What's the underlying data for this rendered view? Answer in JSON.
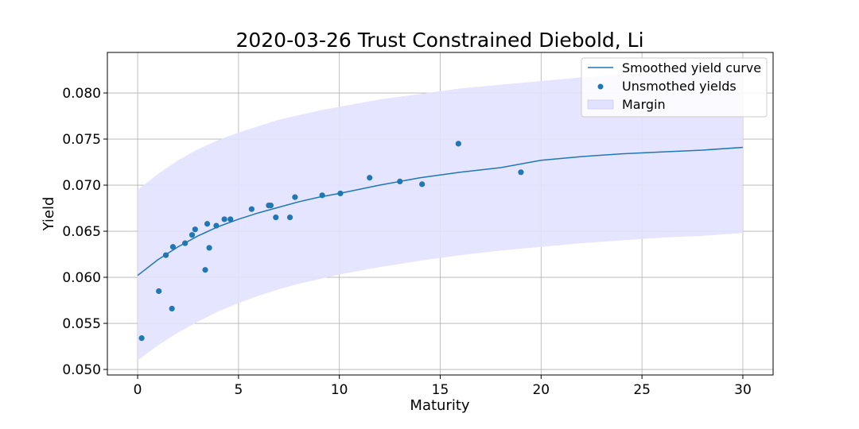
{
  "chart_data": {
    "type": "line",
    "title": "2020-03-26 Trust Constrained Diebold, Li",
    "xlabel": "Maturity",
    "ylabel": "Yield",
    "xlim": [
      -1.5,
      31.5
    ],
    "ylim": [
      0.0494,
      0.0844
    ],
    "xticks": [
      0,
      5,
      10,
      15,
      20,
      25,
      30
    ],
    "xtick_labels": [
      "0",
      "5",
      "10",
      "15",
      "20",
      "25",
      "30"
    ],
    "yticks": [
      0.05,
      0.055,
      0.06,
      0.065,
      0.07,
      0.075,
      0.08
    ],
    "ytick_labels": [
      "0.050",
      "0.055",
      "0.060",
      "0.065",
      "0.070",
      "0.075",
      "0.080"
    ],
    "grid": true,
    "legend_position": "top-right",
    "colors": {
      "curve": "#1f77b4",
      "points": "#1f77b4",
      "margin_fill": "#e2e2ff"
    },
    "series": [
      {
        "name": "Smoothed yield curve",
        "kind": "line",
        "x": [
          0,
          1,
          2,
          3,
          4,
          5,
          6,
          7,
          8,
          9,
          10,
          12,
          14,
          16,
          18,
          20,
          22,
          24,
          26,
          28,
          30
        ],
        "y": [
          0.0602,
          0.0619,
          0.0633,
          0.0645,
          0.0655,
          0.0663,
          0.067,
          0.0676,
          0.0682,
          0.0687,
          0.0691,
          0.07,
          0.0708,
          0.0714,
          0.0719,
          0.0727,
          0.0731,
          0.0734,
          0.0736,
          0.0738,
          0.0741
        ]
      },
      {
        "name": "Unsmothed yields",
        "kind": "scatter",
        "x": [
          0.2,
          1.05,
          1.4,
          1.7,
          1.75,
          2.35,
          2.7,
          2.85,
          3.35,
          3.45,
          3.55,
          3.9,
          4.3,
          4.6,
          5.65,
          6.5,
          6.6,
          6.85,
          7.55,
          7.8,
          9.15,
          10.05,
          11.5,
          13.0,
          14.1,
          15.9,
          19.0
        ],
        "y": [
          0.0534,
          0.0585,
          0.0624,
          0.0566,
          0.0633,
          0.0637,
          0.0646,
          0.0652,
          0.0608,
          0.0658,
          0.0632,
          0.0656,
          0.0663,
          0.0663,
          0.0674,
          0.0678,
          0.0678,
          0.0665,
          0.0665,
          0.0687,
          0.0689,
          0.0691,
          0.0708,
          0.0704,
          0.0701,
          0.0745,
          0.0714
        ]
      },
      {
        "name": "Margin",
        "kind": "band",
        "x": [
          0,
          1,
          2,
          3,
          4,
          5,
          6,
          7,
          8,
          9,
          10,
          12,
          14,
          16,
          18,
          20,
          22,
          24,
          26,
          28,
          30
        ],
        "lower": [
          0.051,
          0.0526,
          0.054,
          0.0552,
          0.0563,
          0.0572,
          0.058,
          0.0587,
          0.0593,
          0.0598,
          0.0603,
          0.0611,
          0.0618,
          0.0624,
          0.0629,
          0.0633,
          0.0637,
          0.064,
          0.0643,
          0.0645,
          0.0648
        ],
        "upper": [
          0.0695,
          0.0712,
          0.0727,
          0.0739,
          0.0749,
          0.0757,
          0.0764,
          0.0771,
          0.0776,
          0.0781,
          0.0785,
          0.0793,
          0.0799,
          0.0805,
          0.0809,
          0.0813,
          0.0817,
          0.082,
          0.0823,
          0.0826,
          0.0828
        ]
      }
    ]
  }
}
